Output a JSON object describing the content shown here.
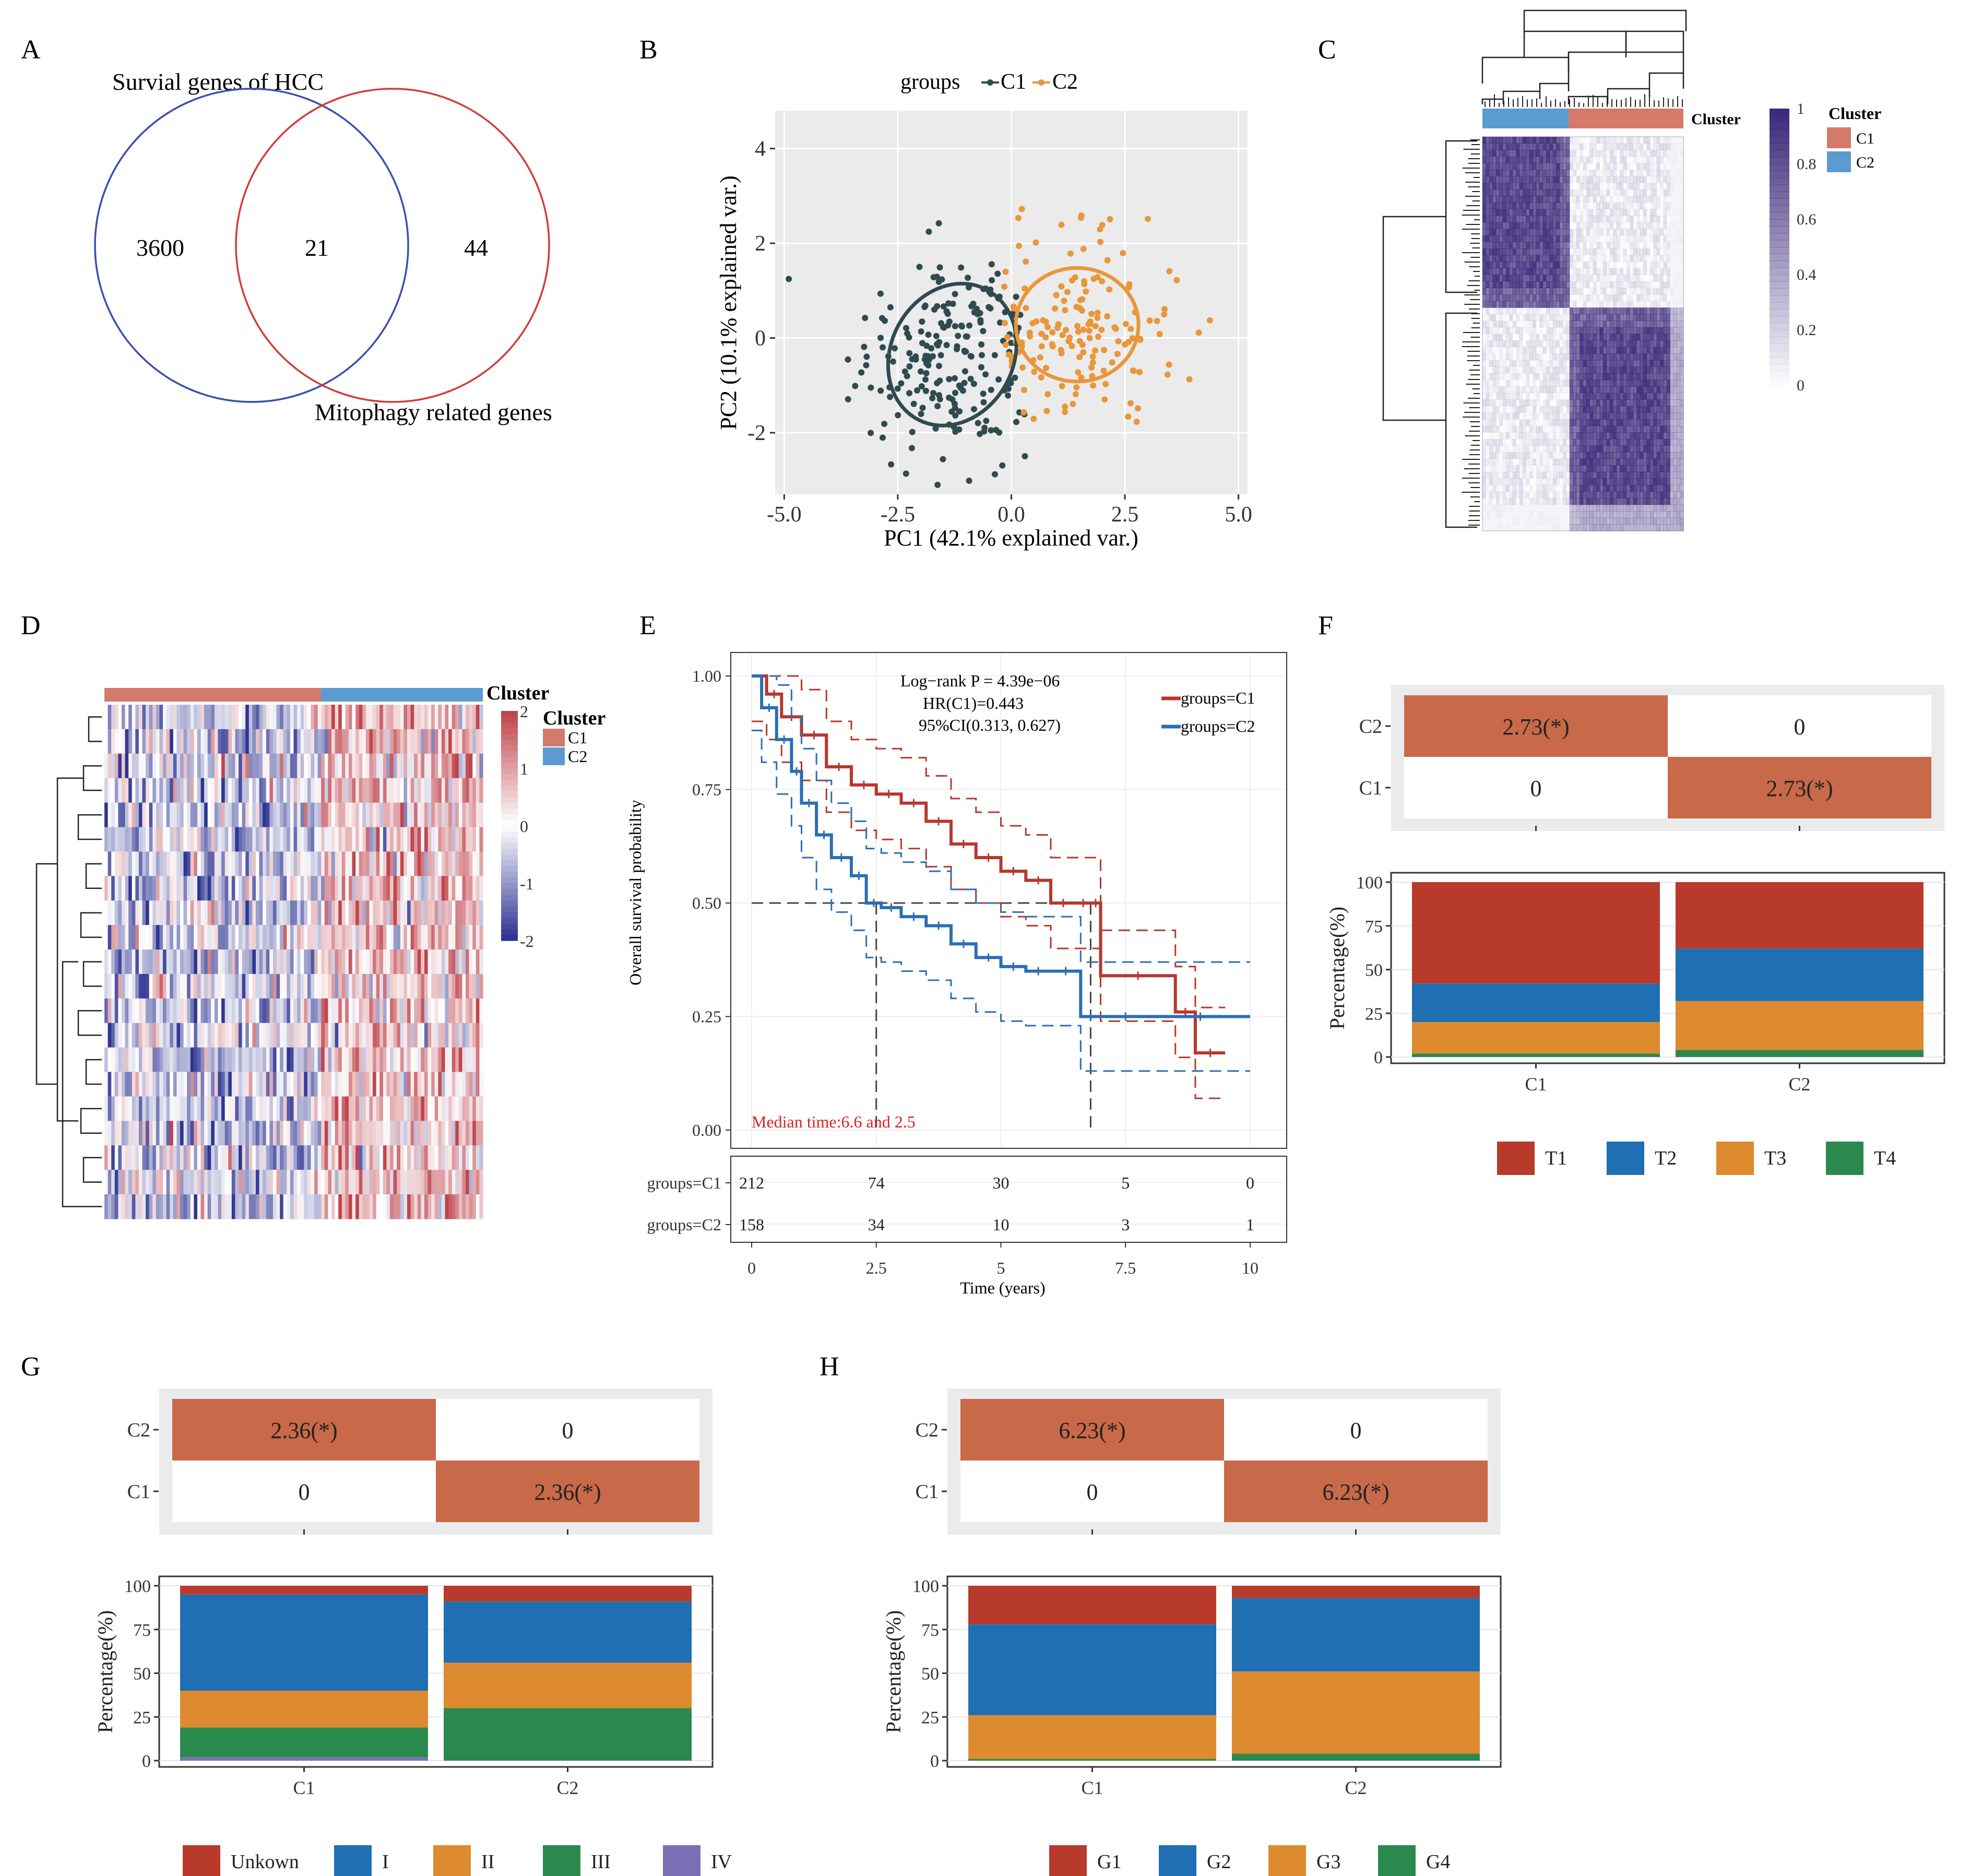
{
  "panels": {
    "A": {
      "letter": "A",
      "set1_label": "Survial genes of HCC",
      "set2_label": "Mitophagy related genes",
      "only1": "3600",
      "both": "21",
      "only2": "44",
      "colors": {
        "set1": "#3a4fb0",
        "set2": "#d53a3a"
      }
    },
    "B": {
      "letter": "B",
      "legend_title": "groups",
      "legend_c1": "C1",
      "legend_c2": "C2",
      "xlabel": "PC1 (42.1% explained var.)",
      "ylabel": "PC2 (10.1% explained var.)",
      "colors": {
        "C1": "#2f4b4f",
        "C2": "#e8973a",
        "panel": "#ebebeb"
      },
      "chart_data": {
        "type": "scatter",
        "xlim": [
          -5.2,
          5.2
        ],
        "ylim": [
          -3.3,
          4.8
        ],
        "xticks": [
          "-5.0",
          "-2.5",
          "0.0",
          "2.5",
          "5.0"
        ],
        "xtick_values": [
          -5,
          -2.5,
          0,
          2.5,
          5
        ],
        "yticks": [
          "4",
          "2",
          "0",
          "-2"
        ],
        "ytick_values": [
          4,
          2,
          0,
          -2
        ],
        "series": [
          {
            "name": "C1",
            "center": [
              -1.4,
              -0.3
            ],
            "sd": [
              1.05,
              1.1
            ],
            "n": 212
          },
          {
            "name": "C2",
            "center": [
              1.5,
              0.3
            ],
            "sd": [
              1.1,
              0.95
            ],
            "n": 158
          }
        ],
        "ellipses": [
          {
            "name": "C1",
            "center": [
              -1.3,
              -0.35
            ],
            "rx": 1.35,
            "ry": 1.55
          },
          {
            "name": "C2",
            "center": [
              1.45,
              0.28
            ],
            "rx": 1.35,
            "ry": 1.2
          }
        ]
      }
    },
    "C": {
      "letter": "C",
      "cluster_label": "Cluster",
      "legend_title": "Cluster",
      "legend_c1": "C1",
      "legend_c2": "C2",
      "colorbar_ticks": [
        "1",
        "0.8",
        "0.6",
        "0.4",
        "0.2",
        "0"
      ],
      "colors": {
        "C1": "#d37a6a",
        "C2": "#5b9bcf",
        "high": "#3c2a7a"
      }
    },
    "D": {
      "letter": "D",
      "cluster_label": "Cluster",
      "legend_title": "Cluster",
      "legend_c1": "C1",
      "legend_c2": "C2",
      "colorbar_ticks": [
        "2",
        "1",
        "0",
        "-1",
        "-2"
      ],
      "colors": {
        "high": "#c0454d",
        "low": "#2e3592",
        "C1": "#d37a6a",
        "C2": "#5b9bcf"
      }
    },
    "E": {
      "letter": "E",
      "logrank": "Log−rank P = 4.39e−06",
      "hr": "HR(C1)=0.443",
      "ci": "95%CI(0.313, 0.627)",
      "legend_c1": "groups=C1",
      "legend_c2": "groups=C2",
      "median_text": "Median time:6.6 and 2.5",
      "ylabel": "Overall survival probability",
      "xlabel": "Time (years)",
      "risk_table": {
        "rows": [
          {
            "label": "groups=C1",
            "values": [
              "212",
              "74",
              "30",
              "5",
              "0"
            ]
          },
          {
            "label": "groups=C2",
            "values": [
              "158",
              "34",
              "10",
              "3",
              "1"
            ]
          }
        ]
      },
      "colors": {
        "C1": "#b8372e",
        "C2": "#2a6fb3",
        "median": "#e02020"
      },
      "chart_data": {
        "type": "line",
        "xlim": [
          0,
          10
        ],
        "ylim": [
          0,
          1
        ],
        "xticks": [
          "0",
          "2.5",
          "5",
          "7.5",
          "10"
        ],
        "xtick_values": [
          0,
          2.5,
          5,
          7.5,
          10
        ],
        "yticks": [
          "1.00",
          "0.75",
          "0.50",
          "0.25",
          "0.00"
        ],
        "ytick_values": [
          1,
          0.75,
          0.5,
          0.25,
          0
        ],
        "series": [
          {
            "name": "groups=C1",
            "x": [
              0,
              0.3,
              0.6,
              1.0,
              1.5,
              2.0,
              2.5,
              3.0,
              3.5,
              4.0,
              4.5,
              5.0,
              5.5,
              6.0,
              6.5,
              6.8,
              7.0,
              8.5,
              8.9,
              9.5
            ],
            "y": [
              1.0,
              0.96,
              0.91,
              0.87,
              0.8,
              0.76,
              0.74,
              0.72,
              0.68,
              0.63,
              0.6,
              0.57,
              0.55,
              0.5,
              0.5,
              0.5,
              0.34,
              0.26,
              0.17,
              0.17
            ]
          },
          {
            "name": "groups=C2",
            "x": [
              0,
              0.2,
              0.5,
              0.8,
              1.0,
              1.3,
              1.6,
              2.0,
              2.3,
              2.6,
              3.0,
              3.5,
              4.0,
              4.5,
              5.0,
              5.5,
              6.0,
              6.6,
              7.0,
              8.0,
              10.0
            ],
            "y": [
              1.0,
              0.93,
              0.86,
              0.79,
              0.72,
              0.65,
              0.6,
              0.56,
              0.5,
              0.49,
              0.47,
              0.45,
              0.41,
              0.38,
              0.36,
              0.35,
              0.35,
              0.25,
              0.25,
              0.25,
              0.25
            ]
          }
        ],
        "median_years": [
          6.6,
          2.5
        ]
      }
    },
    "F": {
      "letter": "F",
      "heat_rows": [
        "C2",
        "C1"
      ],
      "heat_cells": [
        [
          "2.73(*)",
          "0"
        ],
        [
          "0",
          "2.73(*)"
        ]
      ],
      "ylabel": "Percentage(%)",
      "legend": [
        "T1",
        "T2",
        "T3",
        "T4"
      ],
      "colors": [
        "#b83a2b",
        "#1f6fb2",
        "#de8a2e",
        "#2a8a4e"
      ],
      "heat_color": "#c8694a",
      "chart_data": {
        "type": "bar",
        "stacked": true,
        "categories": [
          "C1",
          "C2"
        ],
        "ylim": [
          0,
          100
        ],
        "yticks": [
          "100",
          "75",
          "50",
          "25",
          "0"
        ],
        "series": [
          {
            "name": "T4",
            "values": [
              2,
              4
            ]
          },
          {
            "name": "T3",
            "values": [
              18,
              28
            ]
          },
          {
            "name": "T2",
            "values": [
              22,
              30
            ]
          },
          {
            "name": "T1",
            "values": [
              58,
              38
            ]
          }
        ]
      }
    },
    "G": {
      "letter": "G",
      "heat_rows": [
        "C2",
        "C1"
      ],
      "heat_cells": [
        [
          "2.36(*)",
          "0"
        ],
        [
          "0",
          "2.36(*)"
        ]
      ],
      "ylabel": "Percentage(%)",
      "legend": [
        "Unkown",
        "I",
        "II",
        "III",
        "IV"
      ],
      "colors": [
        "#b83a2b",
        "#1f6fb2",
        "#de8a2e",
        "#2a8a4e",
        "#7d6fb5"
      ],
      "heat_color": "#c8694a",
      "chart_data": {
        "type": "bar",
        "stacked": true,
        "categories": [
          "C1",
          "C2"
        ],
        "ylim": [
          0,
          100
        ],
        "yticks": [
          "100",
          "75",
          "50",
          "25",
          "0"
        ],
        "series": [
          {
            "name": "IV",
            "values": [
              2,
              0
            ]
          },
          {
            "name": "III",
            "values": [
              17,
              30
            ]
          },
          {
            "name": "II",
            "values": [
              21,
              26
            ]
          },
          {
            "name": "I",
            "values": [
              55,
              35
            ]
          },
          {
            "name": "Unkown",
            "values": [
              5,
              9
            ]
          }
        ]
      }
    },
    "H": {
      "letter": "H",
      "heat_rows": [
        "C2",
        "C1"
      ],
      "heat_cells": [
        [
          "6.23(*)",
          "0"
        ],
        [
          "0",
          "6.23(*)"
        ]
      ],
      "ylabel": "Percentage(%)",
      "legend": [
        "G1",
        "G2",
        "G3",
        "G4"
      ],
      "colors": [
        "#b83a2b",
        "#1f6fb2",
        "#de8a2e",
        "#2a8a4e"
      ],
      "heat_color": "#c8694a",
      "chart_data": {
        "type": "bar",
        "stacked": true,
        "categories": [
          "C1",
          "C2"
        ],
        "ylim": [
          0,
          100
        ],
        "yticks": [
          "100",
          "75",
          "50",
          "25",
          "0"
        ],
        "series": [
          {
            "name": "G4",
            "values": [
              1,
              4
            ]
          },
          {
            "name": "G3",
            "values": [
              25,
              47
            ]
          },
          {
            "name": "G2",
            "values": [
              52,
              42
            ]
          },
          {
            "name": "G1",
            "values": [
              22,
              7
            ]
          }
        ]
      }
    }
  }
}
